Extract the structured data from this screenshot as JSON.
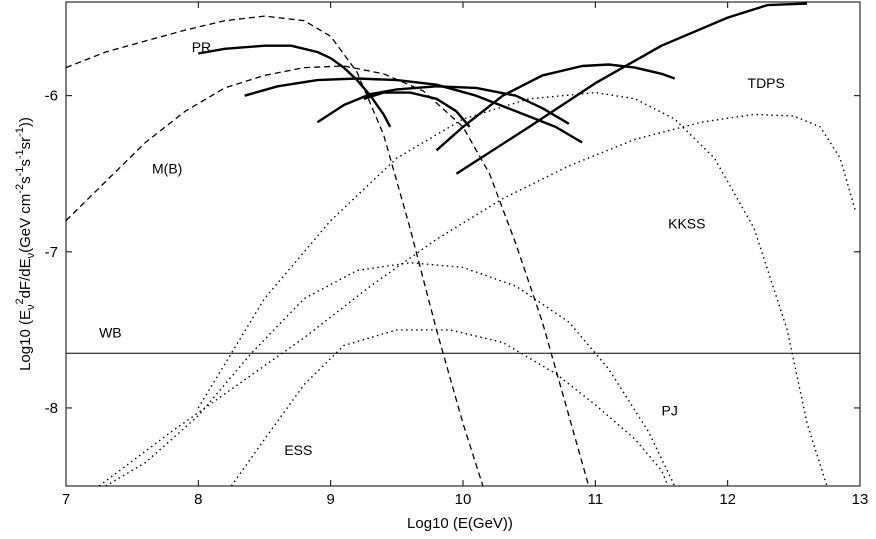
{
  "chart_data": {
    "type": "line",
    "xlabel": "Log10 (E(GeV))",
    "ylabel_parts": {
      "a": "Log10 (E",
      "a_sub": "ν",
      "b": "",
      "b_sup": "2",
      "c": "dF/dE",
      "c_sub": "ν",
      "d": "(GeV cm",
      "d_sup": "-2",
      "e": "s",
      "e_sup": "-1",
      "f": "s",
      "f_sup": "-1",
      "g": "sr",
      "g_sup": "-1",
      "h": "))"
    },
    "xlim": [
      7,
      13
    ],
    "ylim": [
      -8.5,
      -5.4
    ],
    "xticks": [
      "7",
      "8",
      "9",
      "10",
      "11",
      "12",
      "13"
    ],
    "yticks": [
      "-6",
      "-7",
      "-8"
    ],
    "yticks_values": [
      -6,
      -7,
      -8
    ],
    "xticks_values": [
      7,
      8,
      9,
      10,
      11,
      12,
      13
    ],
    "series": [
      {
        "name": "PR",
        "style": "dashed",
        "points": [
          [
            7.0,
            -5.82
          ],
          [
            7.3,
            -5.72
          ],
          [
            7.6,
            -5.65
          ],
          [
            7.9,
            -5.58
          ],
          [
            8.2,
            -5.52
          ],
          [
            8.5,
            -5.49
          ],
          [
            8.8,
            -5.52
          ],
          [
            9.0,
            -5.62
          ],
          [
            9.2,
            -5.85
          ],
          [
            9.4,
            -6.25
          ],
          [
            9.6,
            -6.85
          ],
          [
            9.8,
            -7.5
          ],
          [
            10.0,
            -8.1
          ],
          [
            10.15,
            -8.5
          ]
        ]
      },
      {
        "name": "M(B)",
        "style": "dashed",
        "points": [
          [
            7.0,
            -6.8
          ],
          [
            7.3,
            -6.55
          ],
          [
            7.6,
            -6.3
          ],
          [
            7.9,
            -6.1
          ],
          [
            8.2,
            -5.95
          ],
          [
            8.5,
            -5.87
          ],
          [
            8.8,
            -5.82
          ],
          [
            9.1,
            -5.81
          ],
          [
            9.4,
            -5.86
          ],
          [
            9.7,
            -5.97
          ],
          [
            10.0,
            -6.2
          ],
          [
            10.2,
            -6.5
          ],
          [
            10.4,
            -6.95
          ],
          [
            10.6,
            -7.45
          ],
          [
            10.8,
            -8.05
          ],
          [
            10.95,
            -8.5
          ]
        ]
      },
      {
        "name": "",
        "style": "solid",
        "points": [
          [
            8.0,
            -5.73
          ],
          [
            8.2,
            -5.7
          ],
          [
            8.5,
            -5.68
          ],
          [
            8.7,
            -5.68
          ],
          [
            8.9,
            -5.72
          ],
          [
            9.0,
            -5.76
          ],
          [
            9.1,
            -5.82
          ],
          [
            9.2,
            -5.9
          ],
          [
            9.3,
            -6.0
          ],
          [
            9.4,
            -6.12
          ],
          [
            9.45,
            -6.2
          ]
        ]
      },
      {
        "name": "",
        "style": "solid",
        "points": [
          [
            8.35,
            -6.0
          ],
          [
            8.6,
            -5.94
          ],
          [
            8.9,
            -5.9
          ],
          [
            9.2,
            -5.89
          ],
          [
            9.5,
            -5.9
          ],
          [
            9.8,
            -5.93
          ],
          [
            10.1,
            -6.0
          ],
          [
            10.4,
            -6.1
          ],
          [
            10.7,
            -6.2
          ],
          [
            10.9,
            -6.3
          ]
        ]
      },
      {
        "name": "",
        "style": "solid",
        "points": [
          [
            8.9,
            -6.17
          ],
          [
            9.1,
            -6.06
          ],
          [
            9.3,
            -5.99
          ],
          [
            9.5,
            -5.96
          ],
          [
            9.8,
            -5.94
          ],
          [
            10.1,
            -5.95
          ],
          [
            10.4,
            -6.0
          ],
          [
            10.6,
            -6.08
          ],
          [
            10.8,
            -6.18
          ]
        ]
      },
      {
        "name": "",
        "style": "solid",
        "points": [
          [
            9.25,
            -6.02
          ],
          [
            9.4,
            -5.98
          ],
          [
            9.6,
            -5.98
          ],
          [
            9.8,
            -6.02
          ],
          [
            9.95,
            -6.1
          ],
          [
            10.05,
            -6.2
          ]
        ]
      },
      {
        "name": "",
        "style": "solid",
        "points": [
          [
            9.8,
            -6.35
          ],
          [
            10.0,
            -6.2
          ],
          [
            10.3,
            -6.0
          ],
          [
            10.6,
            -5.87
          ],
          [
            10.9,
            -5.81
          ],
          [
            11.1,
            -5.8
          ],
          [
            11.3,
            -5.82
          ],
          [
            11.5,
            -5.86
          ],
          [
            11.6,
            -5.89
          ]
        ]
      },
      {
        "name": "",
        "style": "solid",
        "points": [
          [
            9.95,
            -6.5
          ],
          [
            10.5,
            -6.2
          ],
          [
            11.0,
            -5.92
          ],
          [
            11.5,
            -5.68
          ],
          [
            12.0,
            -5.5
          ],
          [
            12.3,
            -5.42
          ],
          [
            12.6,
            -5.41
          ]
        ]
      },
      {
        "name": "TDPS",
        "style": "dotted",
        "points": [
          [
            7.25,
            -8.5
          ],
          [
            7.8,
            -8.15
          ],
          [
            8.3,
            -7.85
          ],
          [
            8.8,
            -7.55
          ],
          [
            9.3,
            -7.22
          ],
          [
            9.8,
            -6.92
          ],
          [
            10.3,
            -6.66
          ],
          [
            10.8,
            -6.45
          ],
          [
            11.3,
            -6.28
          ],
          [
            11.8,
            -6.17
          ],
          [
            12.2,
            -6.12
          ],
          [
            12.5,
            -6.13
          ],
          [
            12.7,
            -6.2
          ],
          [
            12.85,
            -6.4
          ],
          [
            12.97,
            -6.75
          ]
        ]
      },
      {
        "name": "KKSS",
        "style": "dotted",
        "points": [
          [
            8.0,
            -8.0
          ],
          [
            8.5,
            -7.3
          ],
          [
            9.0,
            -6.8
          ],
          [
            9.5,
            -6.4
          ],
          [
            10.0,
            -6.15
          ],
          [
            10.5,
            -6.02
          ],
          [
            11.0,
            -5.98
          ],
          [
            11.3,
            -6.02
          ],
          [
            11.6,
            -6.15
          ],
          [
            11.9,
            -6.4
          ],
          [
            12.2,
            -6.85
          ],
          [
            12.45,
            -7.5
          ],
          [
            12.6,
            -8.1
          ],
          [
            12.75,
            -8.5
          ]
        ]
      },
      {
        "name": "PJ",
        "style": "dotted",
        "points": [
          [
            7.3,
            -8.5
          ],
          [
            7.6,
            -8.35
          ],
          [
            8.0,
            -8.05
          ],
          [
            8.4,
            -7.65
          ],
          [
            8.8,
            -7.3
          ],
          [
            9.2,
            -7.12
          ],
          [
            9.6,
            -7.07
          ],
          [
            10.0,
            -7.1
          ],
          [
            10.4,
            -7.22
          ],
          [
            10.8,
            -7.45
          ],
          [
            11.1,
            -7.75
          ],
          [
            11.4,
            -8.15
          ],
          [
            11.6,
            -8.5
          ]
        ]
      },
      {
        "name": "ESS",
        "style": "dotted",
        "points": [
          [
            8.25,
            -8.5
          ],
          [
            8.5,
            -8.2
          ],
          [
            8.8,
            -7.85
          ],
          [
            9.1,
            -7.6
          ],
          [
            9.5,
            -7.5
          ],
          [
            9.9,
            -7.5
          ],
          [
            10.3,
            -7.58
          ],
          [
            10.7,
            -7.78
          ],
          [
            11.0,
            -7.98
          ],
          [
            11.3,
            -8.2
          ],
          [
            11.5,
            -8.4
          ],
          [
            11.55,
            -8.5
          ]
        ]
      },
      {
        "name": "WB",
        "style": "solid-thin",
        "points": [
          [
            7.0,
            -7.65
          ],
          [
            13.0,
            -7.65
          ]
        ]
      }
    ],
    "annotations": [
      {
        "text": "PR",
        "x": 7.95,
        "y": -5.72
      },
      {
        "text": "M(B)",
        "x": 7.65,
        "y": -6.5
      },
      {
        "text": "TDPS",
        "x": 12.15,
        "y": -5.95
      },
      {
        "text": "KKSS",
        "x": 11.55,
        "y": -6.85
      },
      {
        "text": "WB",
        "x": 7.25,
        "y": -7.55
      },
      {
        "text": "PJ",
        "x": 11.5,
        "y": -8.05
      },
      {
        "text": "ESS",
        "x": 8.65,
        "y": -8.3
      }
    ]
  }
}
